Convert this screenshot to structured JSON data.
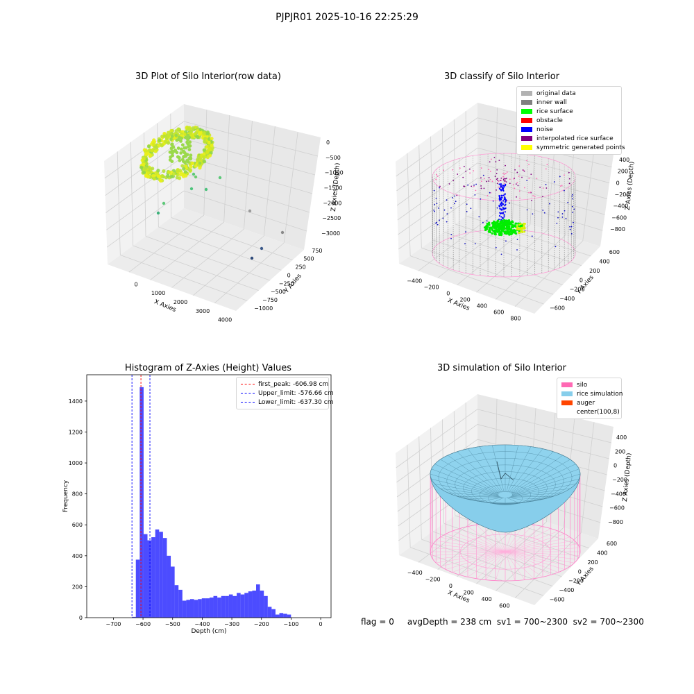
{
  "figure": {
    "suptitle": "PJPJR01 2025-10-16 22:25:29",
    "footer": "flag = 0     avgDepth = 238 cm  sv1 = 700~2300  sv2 = 700~2300"
  },
  "panels": {
    "raw": {
      "title": "3D Plot of Silo Interior(row data)",
      "xlabel": "X Axies",
      "ylabel": "Y Axies",
      "zlabel": "Z Axies (Depth)",
      "xticks": [
        "0",
        "1000",
        "2000",
        "3000",
        "4000"
      ],
      "yticks": [
        "750",
        "500",
        "250",
        "0",
        "−250",
        "−500",
        "−750",
        "−1000"
      ],
      "zticks": [
        "0",
        "−500",
        "−1000",
        "−1500",
        "−2000",
        "−2500",
        "−3000"
      ]
    },
    "classify": {
      "title": "3D classify of Silo Interior",
      "xlabel": "X Axies",
      "ylabel": "Y Axies",
      "zlabel": "Z Axies (Depth)",
      "xticks": [
        "−400",
        "−200",
        "0",
        "200",
        "400",
        "600",
        "800"
      ],
      "yticks": [
        "600",
        "400",
        "200",
        "0",
        "−200",
        "−400",
        "−600"
      ],
      "zticks": [
        "400",
        "200",
        "0",
        "−200",
        "−400",
        "−600",
        "−800"
      ],
      "legend": [
        {
          "label": "original data",
          "color": "#b2b2b2"
        },
        {
          "label": "inner wall",
          "color": "#808080"
        },
        {
          "label": "rice surface",
          "color": "#00ff00"
        },
        {
          "label": "obstacle",
          "color": "#ff0000"
        },
        {
          "label": "noise",
          "color": "#0000ff"
        },
        {
          "label": "interpolated rice surface",
          "color": "#800080"
        },
        {
          "label": "symmetric generated points",
          "color": "#ffff00"
        }
      ]
    },
    "simulation": {
      "title": "3D simulation of Silo Interior",
      "xlabel": "X Axies",
      "ylabel": "Y Axies",
      "zlabel": "Z Axies (Depth)",
      "xticks": [
        "−400",
        "−200",
        "0",
        "200",
        "400",
        "600"
      ],
      "yticks": [
        "600",
        "400",
        "200",
        "0",
        "−200",
        "−400",
        "−600"
      ],
      "zticks": [
        "400",
        "200",
        "0",
        "−200",
        "−400",
        "−600",
        "−800"
      ],
      "legend": [
        {
          "label": "silo",
          "color": "#ff69b4"
        },
        {
          "label": "rice simulation",
          "color": "#87ceeb"
        },
        {
          "label": "auger",
          "color": "#ff4500"
        },
        {
          "label": "center(100,8)",
          "color": "#ffffff"
        }
      ]
    }
  },
  "chart_data": {
    "type": "bar",
    "title": "Histogram of Z-Axies (Height) Values",
    "xlabel": "Depth (cm)",
    "ylabel": "Frequency",
    "xlim": [
      -790,
      35
    ],
    "ylim": [
      0,
      1570
    ],
    "xticks": [
      -700,
      -600,
      -500,
      -400,
      -300,
      -200,
      -100,
      0
    ],
    "yticks": [
      0,
      200,
      400,
      600,
      800,
      1000,
      1200,
      1400
    ],
    "bar_color": "#0000ff",
    "bin_start": -637.3,
    "bin_width": 13.1,
    "values": [
      5,
      375,
      1490,
      540,
      500,
      520,
      570,
      555,
      515,
      400,
      330,
      210,
      180,
      110,
      115,
      120,
      115,
      120,
      125,
      125,
      130,
      140,
      130,
      140,
      140,
      150,
      140,
      160,
      150,
      160,
      170,
      175,
      215,
      175,
      140,
      70,
      55,
      20,
      30,
      25,
      20
    ],
    "vlines": [
      {
        "label": "first_peak: -606.98 cm",
        "x": -606.98,
        "color": "#ff0000"
      },
      {
        "label": "Upper_limit: -576.66 cm",
        "x": -576.66,
        "color": "#0000ff"
      },
      {
        "label": "Lower_limit: -637.30 cm",
        "x": -637.3,
        "color": "#0000ff"
      }
    ],
    "legend_position": "top-right",
    "grid": false
  }
}
